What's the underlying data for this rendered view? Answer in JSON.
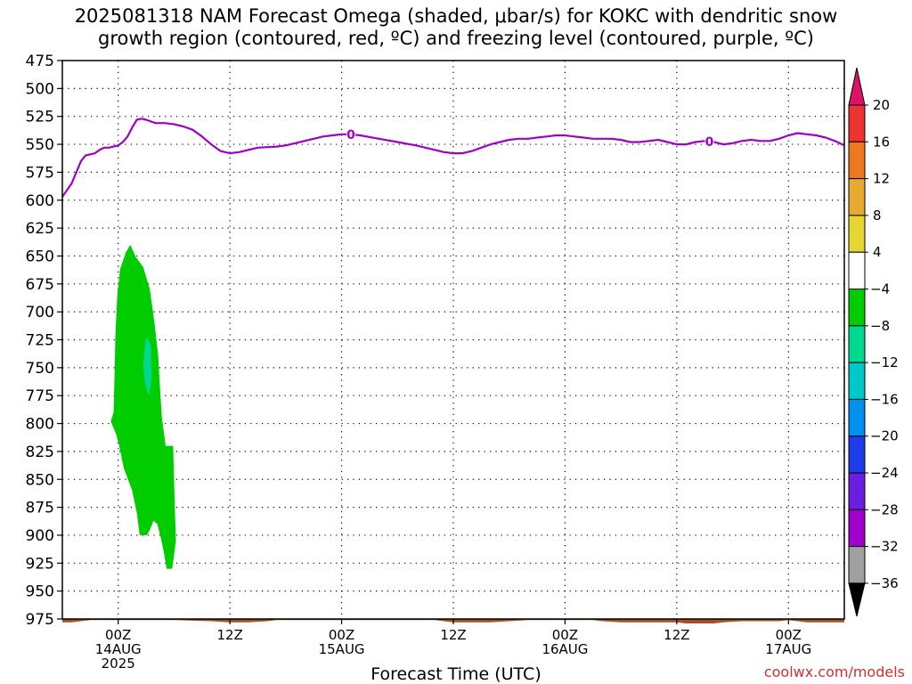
{
  "title": {
    "line1": "2025081318 NAM Forecast Omega (shaded, μbar/s) for KOKC with dendritic snow",
    "line2": "growth region (contoured, red, ºC) and freezing level (contoured, purple, ºC)"
  },
  "credit": "coolwx.com/models",
  "chart_data": {
    "type": "area",
    "title": "2025081318 NAM Forecast Omega (shaded, μbar/s) for KOKC with dendritic snow growth region (contoured, red, ºC) and freezing level (contoured, purple, ºC)",
    "xlabel": "Forecast Time (UTC)",
    "ylabel": "",
    "x_units": "hours after 2025-08-13 18Z",
    "xlim": [
      0,
      84
    ],
    "ylim": [
      975,
      475
    ],
    "y_axis": "pressure (hPa), inverted",
    "grid": true,
    "x_ticks": [
      {
        "h": 6,
        "label1": "00Z",
        "label2": "14AUG",
        "label3": "2025"
      },
      {
        "h": 18,
        "label1": "12Z",
        "label2": "",
        "label3": ""
      },
      {
        "h": 30,
        "label1": "00Z",
        "label2": "15AUG",
        "label3": ""
      },
      {
        "h": 42,
        "label1": "12Z",
        "label2": "",
        "label3": ""
      },
      {
        "h": 54,
        "label1": "00Z",
        "label2": "16AUG",
        "label3": ""
      },
      {
        "h": 66,
        "label1": "12Z",
        "label2": "",
        "label3": ""
      },
      {
        "h": 78,
        "label1": "00Z",
        "label2": "17AUG",
        "label3": ""
      }
    ],
    "y_ticks": [
      475,
      500,
      525,
      550,
      575,
      600,
      625,
      650,
      675,
      700,
      725,
      750,
      775,
      800,
      825,
      850,
      875,
      900,
      925,
      950,
      975
    ],
    "freezing_level": {
      "name": "0",
      "color": "#a000c8",
      "points": [
        [
          0,
          597
        ],
        [
          1,
          585
        ],
        [
          1.5,
          575
        ],
        [
          2,
          565
        ],
        [
          2.5,
          560
        ],
        [
          3,
          559
        ],
        [
          3.5,
          558
        ],
        [
          4,
          555
        ],
        [
          4.5,
          553
        ],
        [
          5,
          553
        ],
        [
          6,
          551
        ],
        [
          6.5,
          548
        ],
        [
          7,
          543
        ],
        [
          7.5,
          535
        ],
        [
          8,
          528
        ],
        [
          8.5,
          527
        ],
        [
          9,
          528
        ],
        [
          10,
          531
        ],
        [
          11,
          531
        ],
        [
          12,
          532
        ],
        [
          13,
          534
        ],
        [
          14,
          537
        ],
        [
          15,
          543
        ],
        [
          16,
          550
        ],
        [
          17,
          556
        ],
        [
          18,
          558
        ],
        [
          19,
          557
        ],
        [
          20,
          555
        ],
        [
          21,
          553
        ],
        [
          23,
          552
        ],
        [
          24,
          551
        ],
        [
          25,
          549
        ],
        [
          26,
          547
        ],
        [
          27,
          545
        ],
        [
          28,
          543
        ],
        [
          29,
          542
        ],
        [
          30,
          541
        ],
        [
          31,
          541
        ],
        [
          32,
          542
        ],
        [
          34,
          545
        ],
        [
          36,
          548
        ],
        [
          38,
          551
        ],
        [
          40,
          555
        ],
        [
          41,
          557
        ],
        [
          42,
          558
        ],
        [
          43,
          558
        ],
        [
          44,
          556
        ],
        [
          45,
          553
        ],
        [
          46,
          550
        ],
        [
          47,
          548
        ],
        [
          48,
          546
        ],
        [
          49,
          545
        ],
        [
          50,
          545
        ],
        [
          51,
          544
        ],
        [
          52,
          543
        ],
        [
          53,
          542
        ],
        [
          54,
          542
        ],
        [
          55,
          543
        ],
        [
          56,
          544
        ],
        [
          57,
          545
        ],
        [
          58,
          545
        ],
        [
          59,
          545
        ],
        [
          60,
          546
        ],
        [
          61,
          548
        ],
        [
          62,
          548
        ],
        [
          63,
          547
        ],
        [
          64,
          546
        ],
        [
          65,
          548
        ],
        [
          66,
          550
        ],
        [
          67,
          550
        ],
        [
          68,
          548
        ],
        [
          69,
          547
        ],
        [
          70,
          548
        ],
        [
          71,
          550
        ],
        [
          72,
          549
        ],
        [
          73,
          547
        ],
        [
          74,
          546
        ],
        [
          75,
          547
        ],
        [
          76,
          547
        ],
        [
          77,
          545
        ],
        [
          78,
          542
        ],
        [
          79,
          540
        ],
        [
          80,
          541
        ],
        [
          81,
          542
        ],
        [
          82,
          544
        ],
        [
          83,
          547
        ],
        [
          84,
          551
        ]
      ],
      "labels": [
        {
          "h": 31,
          "p": 541
        },
        {
          "h": 69.5,
          "p": 547.5
        }
      ]
    },
    "omega_regions": [
      {
        "level": "-8 to -4",
        "color": "#00cc00",
        "points": [
          [
            5.2,
            798
          ],
          [
            5.5,
            790
          ],
          [
            5.6,
            760
          ],
          [
            5.7,
            720
          ],
          [
            5.9,
            685
          ],
          [
            6.2,
            662
          ],
          [
            6.8,
            647
          ],
          [
            7.3,
            640
          ],
          [
            7.9,
            651
          ],
          [
            8.7,
            660
          ],
          [
            9.4,
            680
          ],
          [
            9.9,
            710
          ],
          [
            10.3,
            740
          ],
          [
            10.5,
            770
          ],
          [
            10.7,
            795
          ],
          [
            11.1,
            820
          ],
          [
            11.9,
            820
          ],
          [
            12.0,
            850
          ],
          [
            12.1,
            880
          ],
          [
            12.2,
            905
          ],
          [
            12.0,
            918
          ],
          [
            11.8,
            930
          ],
          [
            11.2,
            930
          ],
          [
            10.9,
            915
          ],
          [
            10.6,
            903
          ],
          [
            10.2,
            890
          ],
          [
            9.8,
            887
          ],
          [
            9.4,
            895
          ],
          [
            9.1,
            900
          ],
          [
            8.3,
            900
          ],
          [
            8.0,
            880
          ],
          [
            7.5,
            860
          ],
          [
            6.6,
            840
          ],
          [
            6.1,
            820
          ],
          [
            5.8,
            810
          ]
        ]
      },
      {
        "level": "-12 to -8",
        "color": "#00d890",
        "points": [
          [
            8.8,
            735
          ],
          [
            9.0,
            722
          ],
          [
            9.5,
            730
          ],
          [
            9.6,
            760
          ],
          [
            9.3,
            775
          ],
          [
            8.9,
            765
          ],
          [
            8.7,
            750
          ]
        ]
      }
    ],
    "terrain": {
      "color": "#a0522d",
      "surface": [
        [
          0,
          978
        ],
        [
          1,
          978
        ],
        [
          2,
          977
        ],
        [
          3,
          976
        ],
        [
          4,
          976
        ],
        [
          5,
          976
        ],
        [
          8,
          976
        ],
        [
          12,
          976
        ],
        [
          16,
          977
        ],
        [
          18,
          978
        ],
        [
          20,
          978
        ],
        [
          22,
          977
        ],
        [
          23,
          976
        ],
        [
          26,
          976
        ],
        [
          30,
          976
        ],
        [
          36,
          976
        ],
        [
          40,
          976
        ],
        [
          42,
          978
        ],
        [
          46,
          978
        ],
        [
          48,
          977
        ],
        [
          50,
          976
        ],
        [
          53,
          976
        ],
        [
          56,
          976
        ],
        [
          57,
          976
        ],
        [
          58,
          977
        ],
        [
          60,
          978
        ],
        [
          64,
          978
        ],
        [
          66,
          978
        ],
        [
          67,
          979
        ],
        [
          70,
          979
        ],
        [
          71,
          978
        ],
        [
          73,
          977
        ],
        [
          77,
          977
        ],
        [
          78,
          976
        ],
        [
          79,
          977
        ],
        [
          80,
          978
        ],
        [
          84,
          978
        ]
      ]
    },
    "colorbar": {
      "label_values": [
        "20",
        "16",
        "12",
        "8",
        "4",
        "−4",
        "−8",
        "−12",
        "−16",
        "−20",
        "−24",
        "−28",
        "−32",
        "−36"
      ],
      "colors": [
        "#dd1166",
        "#ee3333",
        "#ee7722",
        "#e8aa33",
        "#e6d632",
        "#ffffff",
        "#00cc00",
        "#00d890",
        "#00c8c8",
        "#0090f0",
        "#1e3ce8",
        "#6a1ee0",
        "#a000c8",
        "#a0a0a0",
        "#000000"
      ]
    }
  }
}
